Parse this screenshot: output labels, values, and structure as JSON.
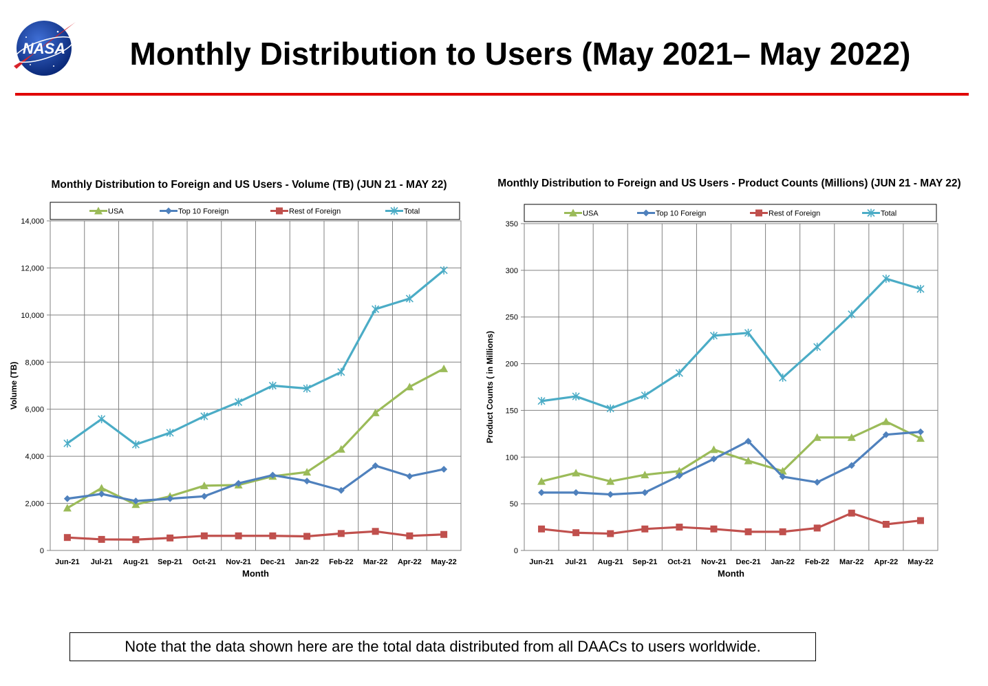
{
  "header": {
    "title": "Monthly Distribution to Users (May 2021– May 2022)",
    "logo_text": "NASA"
  },
  "note": "Note that the data shown here are the total data distributed from all DAACs to users worldwide.",
  "colors": {
    "usa": "#9BBB59",
    "top10": "#4F81BD",
    "rest": "#C0504D",
    "total": "#4BACC6",
    "rule": "#e00000",
    "grid": "#808080"
  },
  "chart_data": [
    {
      "type": "line",
      "title": "Monthly Distribution to Foreign and US Users - Volume  (TB) (JUN 21 - MAY 22)",
      "xlabel": "Month",
      "ylabel": "Volume (TB)",
      "ylim": [
        0,
        14000
      ],
      "yticks": [
        "0",
        "2,000",
        "4,000",
        "6,000",
        "8,000",
        "10,000",
        "12,000",
        "14,000"
      ],
      "categories": [
        "Jun-21",
        "Jul-21",
        "Aug-21",
        "Sep-21",
        "Oct-21",
        "Nov-21",
        "Dec-21",
        "Jan-22",
        "Feb-22",
        "Mar-22",
        "Apr-22",
        "May-22"
      ],
      "grid": true,
      "legend_position": "top",
      "series": [
        {
          "name": "USA",
          "color": "#9BBB59",
          "marker": "triangle",
          "values": [
            1800,
            2650,
            1950,
            2300,
            2750,
            2780,
            3150,
            3330,
            4300,
            5850,
            6950,
            7720
          ]
        },
        {
          "name": "Top 10 Foreign",
          "color": "#4F81BD",
          "marker": "diamond",
          "values": [
            2200,
            2400,
            2100,
            2200,
            2300,
            2850,
            3200,
            2950,
            2550,
            3600,
            3150,
            3450
          ]
        },
        {
          "name": "Rest of Foreign",
          "color": "#C0504D",
          "marker": "square",
          "values": [
            550,
            470,
            460,
            530,
            620,
            620,
            620,
            600,
            720,
            810,
            620,
            680
          ]
        },
        {
          "name": "Total",
          "color": "#4BACC6",
          "marker": "star",
          "values": [
            4550,
            5580,
            4500,
            5000,
            5700,
            6300,
            7000,
            6880,
            7580,
            10250,
            10700,
            11900
          ]
        }
      ]
    },
    {
      "type": "line",
      "title": "Monthly Distribution to Foreign and US Users - Product Counts (Millions) (JUN 21 - MAY 22)",
      "xlabel": "Month",
      "ylabel": "Product Counts ( in Millions)",
      "ylim": [
        0,
        350
      ],
      "yticks": [
        "0",
        "50",
        "100",
        "150",
        "200",
        "250",
        "300",
        "350"
      ],
      "categories": [
        "Jun-21",
        "Jul-21",
        "Aug-21",
        "Sep-21",
        "Oct-21",
        "Nov-21",
        "Dec-21",
        "Jan-22",
        "Feb-22",
        "Mar-22",
        "Apr-22",
        "May-22"
      ],
      "grid": true,
      "legend_position": "top",
      "series": [
        {
          "name": "USA",
          "color": "#9BBB59",
          "marker": "triangle",
          "values": [
            74,
            83,
            74,
            81,
            85,
            108,
            96,
            85,
            121,
            121,
            138,
            120
          ]
        },
        {
          "name": "Top 10 Foreign",
          "color": "#4F81BD",
          "marker": "diamond",
          "values": [
            62,
            62,
            60,
            62,
            80,
            98,
            117,
            79,
            73,
            91,
            124,
            127
          ]
        },
        {
          "name": "Rest of Foreign",
          "color": "#C0504D",
          "marker": "square",
          "values": [
            23,
            19,
            18,
            23,
            25,
            23,
            20,
            20,
            24,
            40,
            28,
            32
          ]
        },
        {
          "name": "Total",
          "color": "#4BACC6",
          "marker": "star",
          "values": [
            160,
            165,
            152,
            166,
            190,
            230,
            233,
            185,
            218,
            253,
            291,
            280
          ]
        }
      ]
    }
  ]
}
